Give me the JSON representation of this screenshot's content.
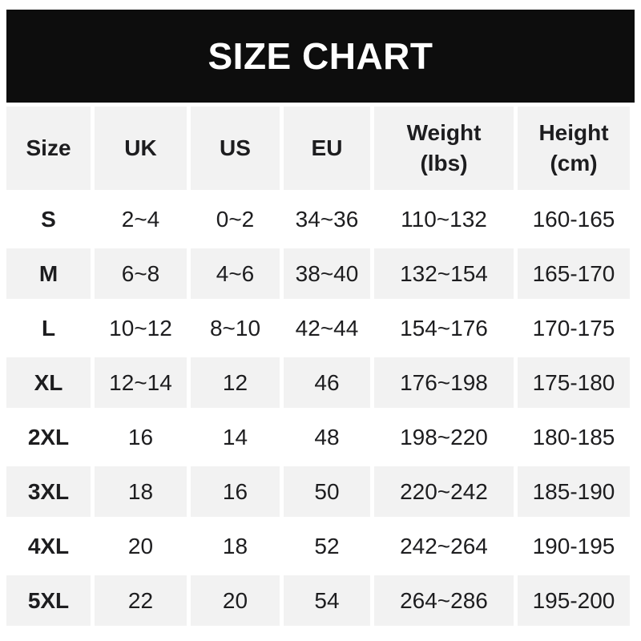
{
  "banner": {
    "title": "SIZE CHART"
  },
  "colors": {
    "banner_bg": "#0d0d0d",
    "banner_text": "#ffffff",
    "alt_row_bg": "#f2f2f2",
    "text": "#1d1d1f",
    "page_bg": "#ffffff"
  },
  "table": {
    "columns": [
      {
        "label": "Size"
      },
      {
        "label": "UK"
      },
      {
        "label": "US"
      },
      {
        "label": "EU"
      },
      {
        "label": "Weight",
        "sub": "(lbs)"
      },
      {
        "label": "Height",
        "sub": "(cm)"
      }
    ],
    "rows": [
      [
        "S",
        "2~4",
        "0~2",
        "34~36",
        "110~132",
        "160-165"
      ],
      [
        "M",
        "6~8",
        "4~6",
        "38~40",
        "132~154",
        "165-170"
      ],
      [
        "L",
        "10~12",
        "8~10",
        "42~44",
        "154~176",
        "170-175"
      ],
      [
        "XL",
        "12~14",
        "12",
        "46",
        "176~198",
        "175-180"
      ],
      [
        "2XL",
        "16",
        "14",
        "48",
        "198~220",
        "180-185"
      ],
      [
        "3XL",
        "18",
        "16",
        "50",
        "220~242",
        "185-190"
      ],
      [
        "4XL",
        "20",
        "18",
        "52",
        "242~264",
        "190-195"
      ],
      [
        "5XL",
        "22",
        "20",
        "54",
        "264~286",
        "195-200"
      ]
    ]
  },
  "chart_data": {
    "type": "table",
    "title": "SIZE CHART",
    "columns": [
      "Size",
      "UK",
      "US",
      "EU",
      "Weight (lbs)",
      "Height (cm)"
    ],
    "rows": [
      [
        "S",
        "2~4",
        "0~2",
        "34~36",
        "110~132",
        "160-165"
      ],
      [
        "M",
        "6~8",
        "4~6",
        "38~40",
        "132~154",
        "165-170"
      ],
      [
        "L",
        "10~12",
        "8~10",
        "42~44",
        "154~176",
        "170-175"
      ],
      [
        "XL",
        "12~14",
        "12",
        "46",
        "176~198",
        "175-180"
      ],
      [
        "2XL",
        "16",
        "14",
        "48",
        "198~220",
        "180-185"
      ],
      [
        "3XL",
        "18",
        "16",
        "50",
        "220~242",
        "185-190"
      ],
      [
        "4XL",
        "20",
        "18",
        "52",
        "242~264",
        "190-195"
      ],
      [
        "5XL",
        "22",
        "20",
        "54",
        "264~286",
        "195-200"
      ]
    ]
  }
}
